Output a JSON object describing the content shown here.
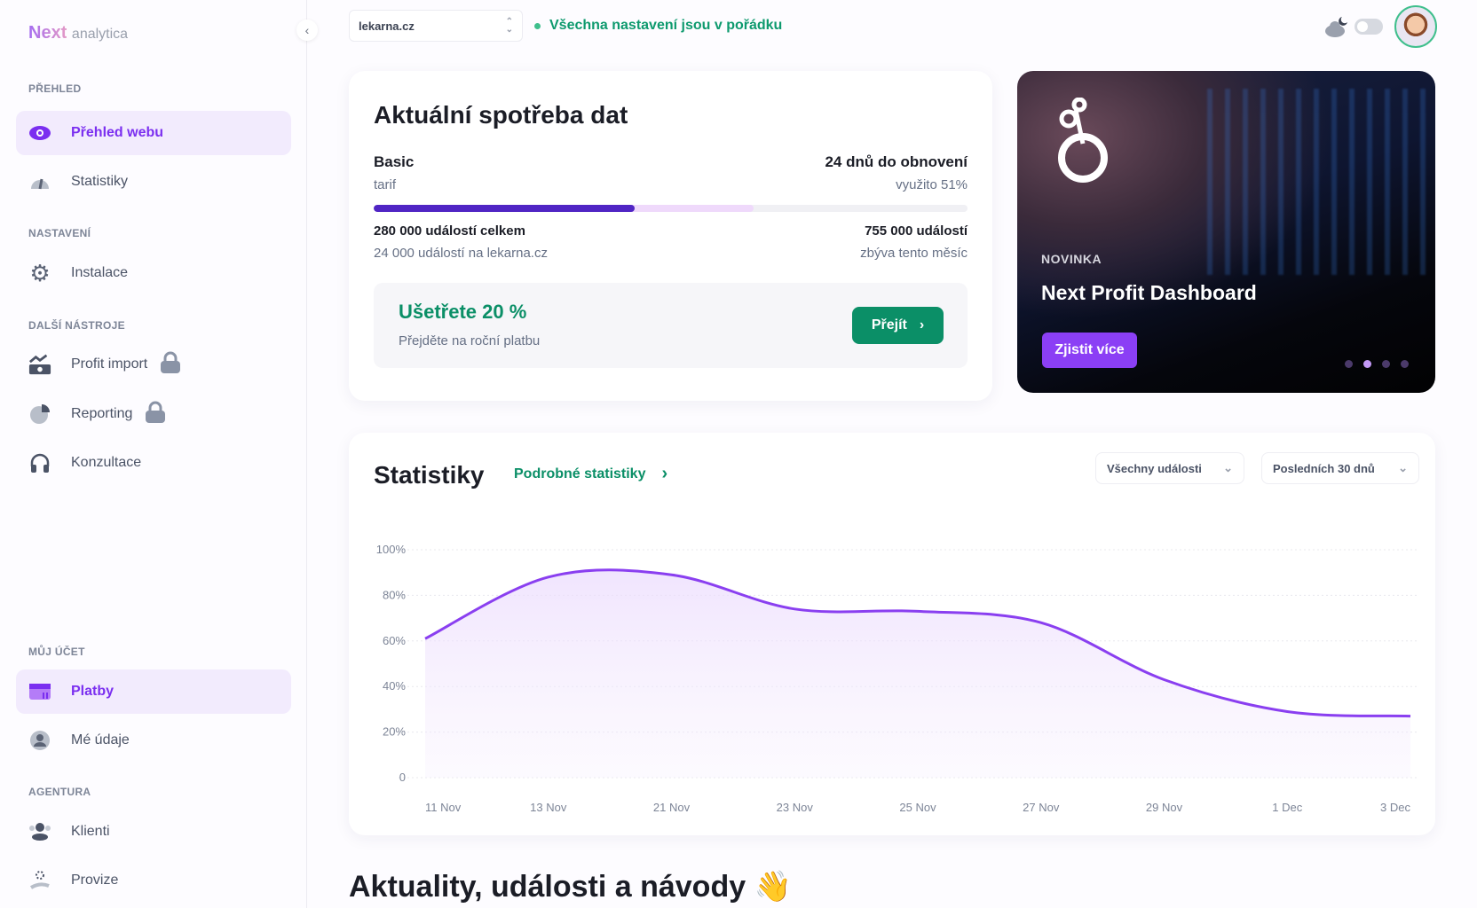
{
  "brand": {
    "name_bold": "Next",
    "name_light": "analytica",
    "accent": "#7b2ff0",
    "green": "#0b8f67"
  },
  "sidebar": {
    "sections": [
      {
        "label": "PŘEHLED",
        "items": [
          {
            "label": "Přehled webu",
            "icon": "eye-icon",
            "active": true
          },
          {
            "label": "Statistiky",
            "icon": "gauge-icon"
          }
        ]
      },
      {
        "label": "NASTAVENÍ",
        "items": [
          {
            "label": "Instalace",
            "icon": "gear-icon"
          }
        ]
      },
      {
        "label": "DALŠÍ NÁSTROJE",
        "items": [
          {
            "label": "Profit import",
            "icon": "money-chart-icon",
            "locked": true
          },
          {
            "label": "Reporting",
            "icon": "pie-chart-icon",
            "locked": true
          },
          {
            "label": "Konzultace",
            "icon": "headphones-icon"
          }
        ]
      },
      {
        "label": "MŮJ ÚČET",
        "items": [
          {
            "label": "Platby",
            "icon": "payment-card-icon",
            "active": true
          },
          {
            "label": "Mé údaje",
            "icon": "user-circle-icon"
          }
        ]
      },
      {
        "label": "AGENTURA",
        "items": [
          {
            "label": "Klienti",
            "icon": "clients-icon"
          },
          {
            "label": "Provize",
            "icon": "commission-hand-icon"
          }
        ]
      }
    ]
  },
  "header": {
    "site": "lekarna.cz",
    "status": "Všechna nastavení jsou v pořádku",
    "dark_mode": false
  },
  "usage": {
    "title": "Aktuální spotřeba dat",
    "plan": "Basic",
    "plan_sub": "tarif",
    "renewal": "24 dnů do obnovení",
    "used": "využito 51%",
    "bar_primary_percent": 44,
    "bar_secondary_percent": 64,
    "total": "280 000 událostí celkem",
    "site_events": "24 000 událostí na lekarna.cz",
    "remaining": "755 000 událostí",
    "remaining_sub": "zbýva tento měsíc",
    "promo_title": "Ušetřete 20 %",
    "promo_text": "Přejděte na roční platbu",
    "promo_button": "Přejít"
  },
  "banner": {
    "tag": "NOVINKA",
    "title": "Next Profit Dashboard",
    "button": "Zjistit více",
    "slides": 4,
    "active_slide": 2
  },
  "stats": {
    "title": "Statistiky",
    "link": "Podrobné statistiky",
    "filter_events": "Všechny události",
    "filter_period": "Posledních 30 dnů"
  },
  "chart_data": {
    "type": "area",
    "categories": [
      "11 Nov",
      "13 Nov",
      "21 Nov",
      "23 Nov",
      "25 Nov",
      "27 Nov",
      "29 Nov",
      "1 Dec",
      "3 Dec"
    ],
    "values": [
      61,
      88,
      89,
      74,
      73,
      68,
      43,
      29,
      27
    ],
    "y_ticks": [
      "0",
      "20%",
      "40%",
      "60%",
      "80%",
      "100%"
    ],
    "ylim": [
      0,
      100
    ],
    "grid": true,
    "color": "#8a3ff0"
  },
  "news_heading": "Aktuality, události a návody 👋"
}
